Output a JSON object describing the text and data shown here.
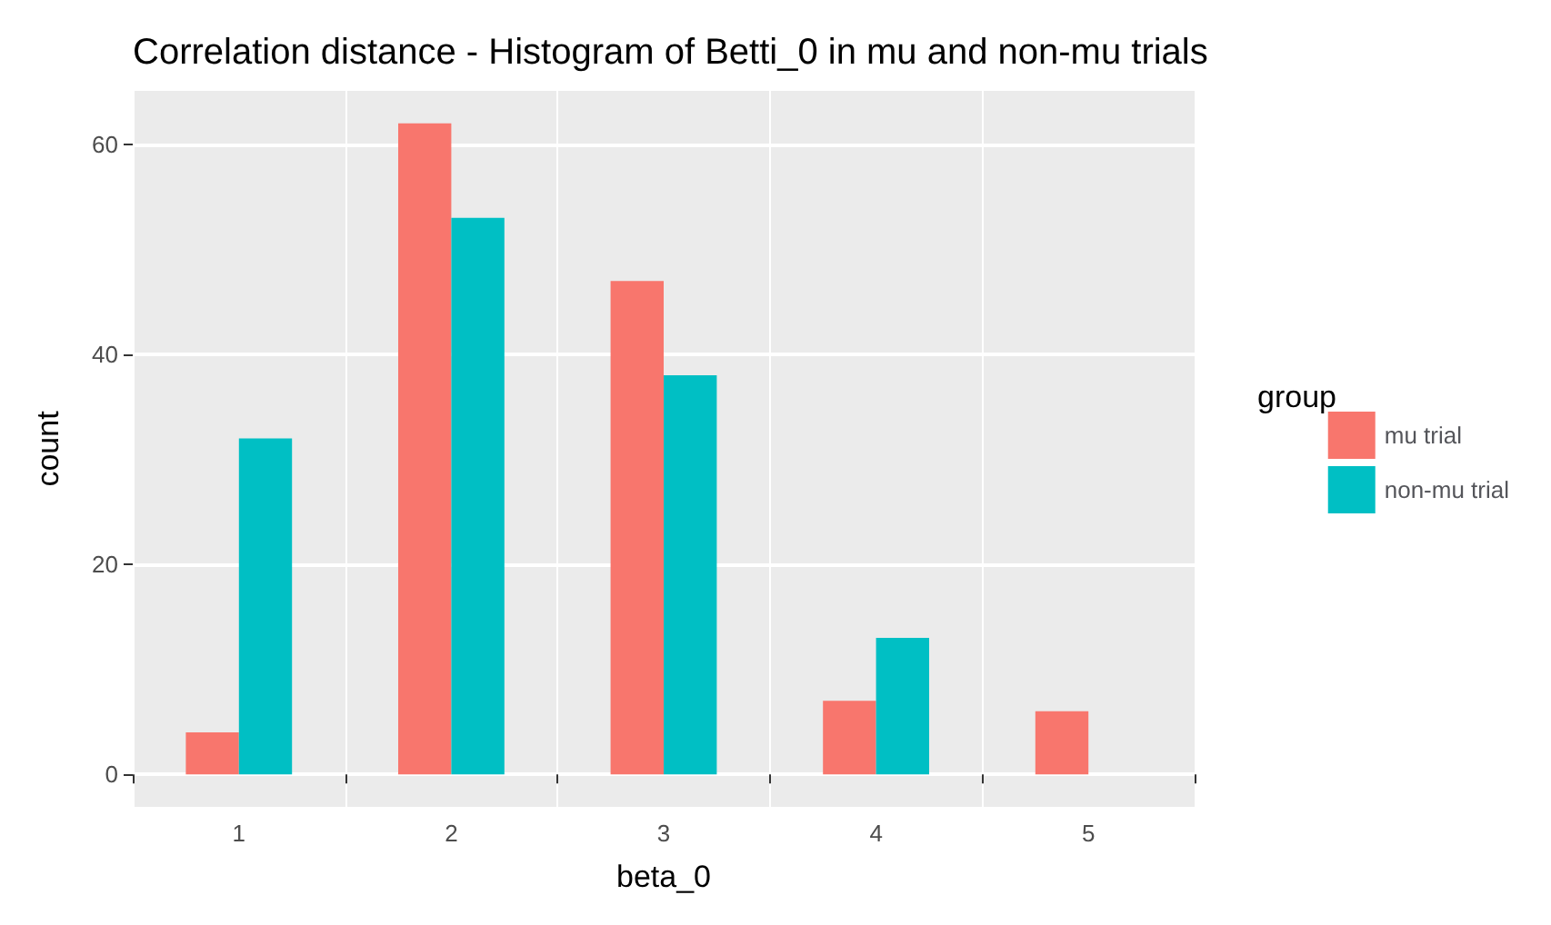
{
  "chart_data": {
    "type": "bar",
    "title": "Correlation distance - Histogram of Betti_0 in mu and non-mu trials",
    "xlabel": "beta_0",
    "ylabel": "count",
    "legend_title": "group",
    "categories": [
      "1",
      "2",
      "3",
      "4",
      "5"
    ],
    "series": [
      {
        "name": "mu trial",
        "color": "#f8766d",
        "values": [
          4,
          62,
          47,
          7,
          6
        ]
      },
      {
        "name": "non-mu trial",
        "color": "#00bfc4",
        "values": [
          32,
          53,
          38,
          13,
          null
        ]
      }
    ],
    "ylim": [
      -3.1,
      65.1
    ],
    "yticks": [
      0,
      20,
      40,
      60
    ],
    "grid": true,
    "legend": "right"
  }
}
